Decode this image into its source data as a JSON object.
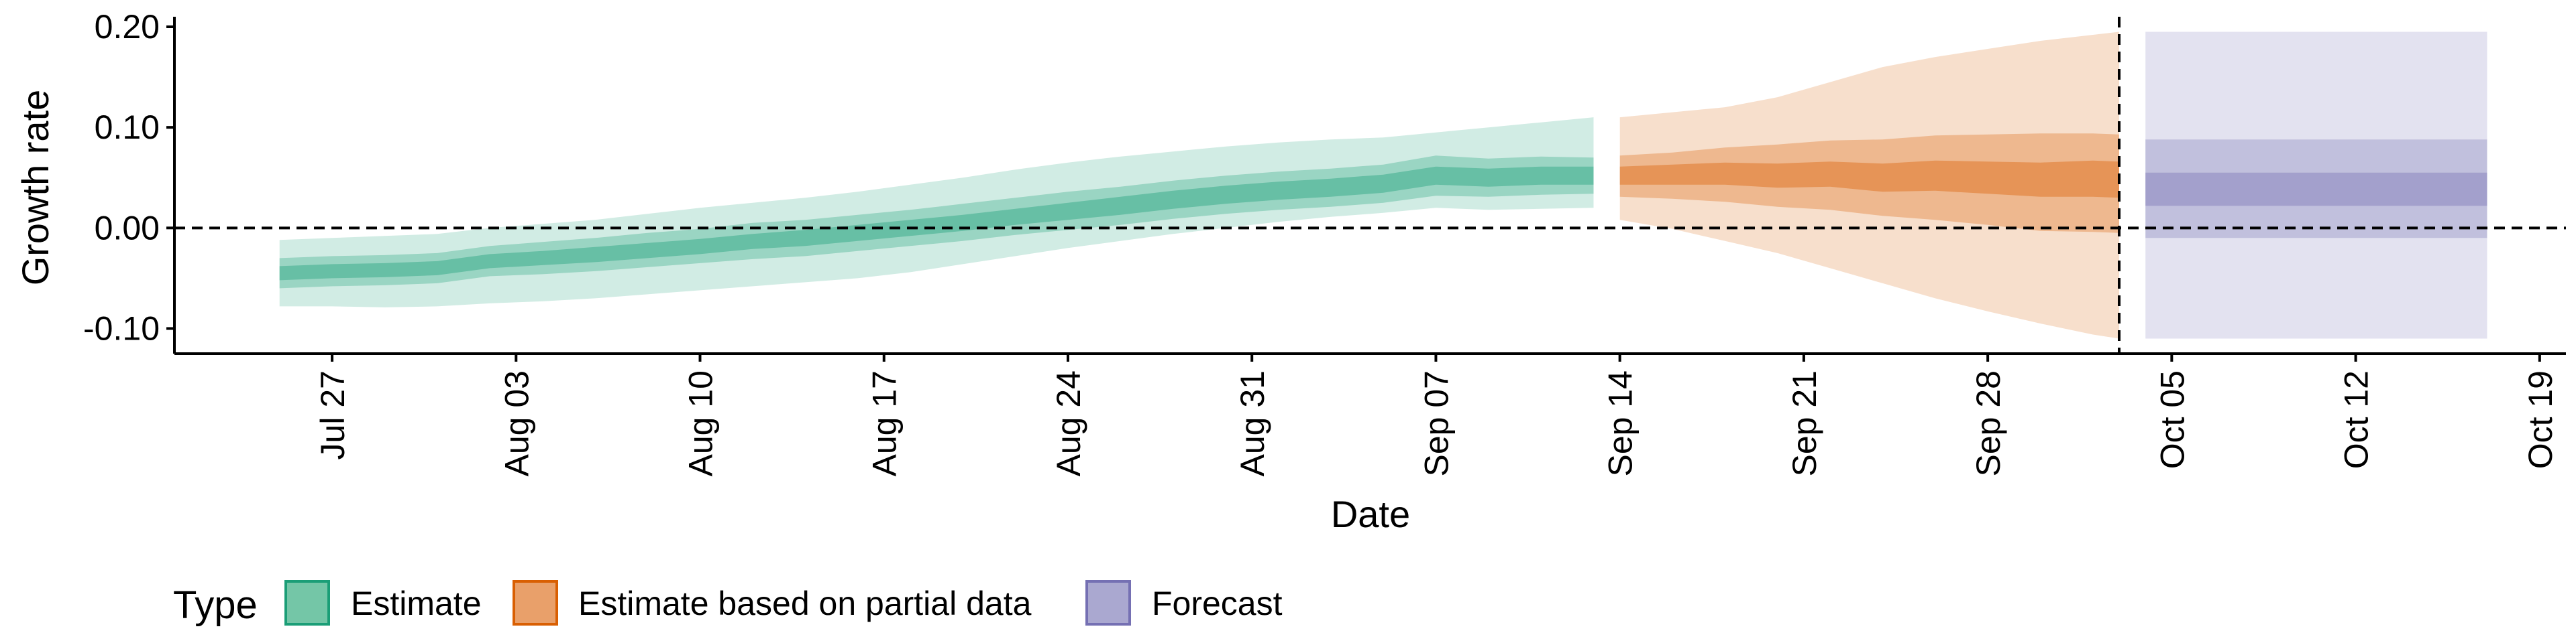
{
  "chart_data": {
    "type": "area",
    "title": "",
    "xlabel": "Date",
    "ylabel": "Growth rate",
    "x_range": [
      "2020-07-21",
      "2020-10-20"
    ],
    "ylim": [
      -0.125,
      0.21
    ],
    "x_ticks": [
      {
        "date": "2020-07-27",
        "label": "Jul 27"
      },
      {
        "date": "2020-08-03",
        "label": "Aug 03"
      },
      {
        "date": "2020-08-10",
        "label": "Aug 10"
      },
      {
        "date": "2020-08-17",
        "label": "Aug 17"
      },
      {
        "date": "2020-08-24",
        "label": "Aug 24"
      },
      {
        "date": "2020-08-31",
        "label": "Aug 31"
      },
      {
        "date": "2020-09-07",
        "label": "Sep 07"
      },
      {
        "date": "2020-09-14",
        "label": "Sep 14"
      },
      {
        "date": "2020-09-21",
        "label": "Sep 21"
      },
      {
        "date": "2020-09-28",
        "label": "Sep 28"
      },
      {
        "date": "2020-10-05",
        "label": "Oct 05"
      },
      {
        "date": "2020-10-12",
        "label": "Oct 12"
      },
      {
        "date": "2020-10-19",
        "label": "Oct 19"
      }
    ],
    "y_ticks": [
      {
        "value": -0.1,
        "label": "-0.10"
      },
      {
        "value": 0.0,
        "label": "0.00"
      },
      {
        "value": 0.1,
        "label": "0.10"
      },
      {
        "value": 0.2,
        "label": "0.20"
      }
    ],
    "reference_lines": {
      "horizontal_y": 0.0,
      "vertical_date": "2020-10-03"
    },
    "grid": false,
    "legend": {
      "title": "Type",
      "placement": "bottom-left",
      "items": [
        {
          "label": "Estimate",
          "fill": "#74c6a7",
          "border": "#1b9e77"
        },
        {
          "label": "Estimate based on partial data",
          "fill": "#e9a06a",
          "border": "#d95f02"
        },
        {
          "label": "Forecast",
          "fill": "#aaa8d0",
          "border": "#7570b3"
        }
      ]
    },
    "series": [
      {
        "name": "Estimate",
        "color": "#1b9e77",
        "type": "ribbon",
        "dates": [
          "2020-07-25",
          "2020-07-27",
          "2020-07-29",
          "2020-07-31",
          "2020-08-02",
          "2020-08-04",
          "2020-08-06",
          "2020-08-08",
          "2020-08-10",
          "2020-08-12",
          "2020-08-14",
          "2020-08-16",
          "2020-08-18",
          "2020-08-20",
          "2020-08-22",
          "2020-08-24",
          "2020-08-26",
          "2020-08-28",
          "2020-08-30",
          "2020-09-01",
          "2020-09-03",
          "2020-09-05",
          "2020-09-07",
          "2020-09-09",
          "2020-09-11",
          "2020-09-13"
        ],
        "median": [
          -0.045,
          -0.043,
          -0.042,
          -0.04,
          -0.033,
          -0.03,
          -0.026,
          -0.022,
          -0.018,
          -0.013,
          -0.01,
          -0.005,
          0.0,
          0.005,
          0.011,
          0.017,
          0.022,
          0.028,
          0.033,
          0.037,
          0.04,
          0.044,
          0.052,
          0.05,
          0.052,
          0.052
        ],
        "inner_lower": [
          -0.052,
          -0.05,
          -0.049,
          -0.047,
          -0.04,
          -0.037,
          -0.034,
          -0.03,
          -0.026,
          -0.021,
          -0.018,
          -0.013,
          -0.008,
          -0.003,
          0.003,
          0.008,
          0.013,
          0.019,
          0.024,
          0.028,
          0.031,
          0.035,
          0.043,
          0.041,
          0.043,
          0.043
        ],
        "inner_upper": [
          -0.038,
          -0.036,
          -0.035,
          -0.033,
          -0.026,
          -0.023,
          -0.019,
          -0.015,
          -0.011,
          -0.006,
          -0.002,
          0.003,
          0.008,
          0.013,
          0.019,
          0.025,
          0.031,
          0.037,
          0.042,
          0.046,
          0.049,
          0.053,
          0.061,
          0.059,
          0.061,
          0.061
        ],
        "mid_lower": [
          -0.06,
          -0.058,
          -0.057,
          -0.055,
          -0.048,
          -0.046,
          -0.043,
          -0.039,
          -0.035,
          -0.031,
          -0.028,
          -0.023,
          -0.018,
          -0.013,
          -0.007,
          -0.002,
          0.003,
          0.009,
          0.014,
          0.018,
          0.021,
          0.025,
          0.032,
          0.031,
          0.033,
          0.034
        ],
        "mid_upper": [
          -0.03,
          -0.028,
          -0.027,
          -0.025,
          -0.018,
          -0.014,
          -0.01,
          -0.005,
          -0.001,
          0.005,
          0.008,
          0.013,
          0.018,
          0.024,
          0.03,
          0.036,
          0.041,
          0.047,
          0.052,
          0.056,
          0.059,
          0.063,
          0.072,
          0.069,
          0.071,
          0.07
        ],
        "outer_lower": [
          -0.078,
          -0.078,
          -0.079,
          -0.078,
          -0.075,
          -0.073,
          -0.07,
          -0.066,
          -0.062,
          -0.058,
          -0.054,
          -0.05,
          -0.044,
          -0.036,
          -0.028,
          -0.02,
          -0.013,
          -0.006,
          0.0,
          0.006,
          0.011,
          0.015,
          0.02,
          0.018,
          0.019,
          0.02
        ],
        "outer_upper": [
          -0.012,
          -0.01,
          -0.008,
          -0.006,
          0.0,
          0.004,
          0.008,
          0.014,
          0.02,
          0.025,
          0.03,
          0.036,
          0.043,
          0.05,
          0.058,
          0.065,
          0.071,
          0.076,
          0.081,
          0.085,
          0.088,
          0.09,
          0.095,
          0.1,
          0.105,
          0.11
        ]
      },
      {
        "name": "Estimate based on partial data",
        "color": "#d95f02",
        "type": "ribbon",
        "dates": [
          "2020-09-14",
          "2020-09-16",
          "2020-09-18",
          "2020-09-20",
          "2020-09-22",
          "2020-09-24",
          "2020-09-26",
          "2020-09-28",
          "2020-09-30",
          "2020-10-02",
          "2020-10-03"
        ],
        "median": [
          0.052,
          0.053,
          0.054,
          0.052,
          0.054,
          0.05,
          0.052,
          0.05,
          0.048,
          0.049,
          0.047
        ],
        "inner_lower": [
          0.043,
          0.043,
          0.043,
          0.04,
          0.041,
          0.036,
          0.037,
          0.034,
          0.031,
          0.031,
          0.03
        ],
        "inner_upper": [
          0.061,
          0.063,
          0.065,
          0.064,
          0.066,
          0.064,
          0.067,
          0.066,
          0.065,
          0.067,
          0.066
        ],
        "mid_lower": [
          0.031,
          0.029,
          0.026,
          0.021,
          0.018,
          0.012,
          0.008,
          0.003,
          -0.003,
          -0.004,
          -0.005
        ],
        "mid_upper": [
          0.072,
          0.075,
          0.08,
          0.083,
          0.087,
          0.088,
          0.092,
          0.093,
          0.094,
          0.094,
          0.093
        ],
        "outer_lower": [
          0.008,
          -0.001,
          -0.013,
          -0.025,
          -0.04,
          -0.055,
          -0.07,
          -0.083,
          -0.095,
          -0.106,
          -0.11
        ],
        "outer_upper": [
          0.11,
          0.115,
          0.12,
          0.13,
          0.145,
          0.16,
          0.17,
          0.178,
          0.186,
          0.192,
          0.195
        ]
      },
      {
        "name": "Forecast",
        "color": "#7570b3",
        "type": "ribbon",
        "dates": [
          "2020-10-04",
          "2020-10-17"
        ],
        "median": [
          0.038,
          0.038
        ],
        "inner_lower": [
          0.022,
          0.022
        ],
        "inner_upper": [
          0.055,
          0.055
        ],
        "mid_lower": [
          -0.01,
          -0.01
        ],
        "mid_upper": [
          0.088,
          0.088
        ],
        "outer_lower": [
          -0.11,
          -0.11
        ],
        "outer_upper": [
          0.195,
          0.195
        ]
      }
    ]
  }
}
